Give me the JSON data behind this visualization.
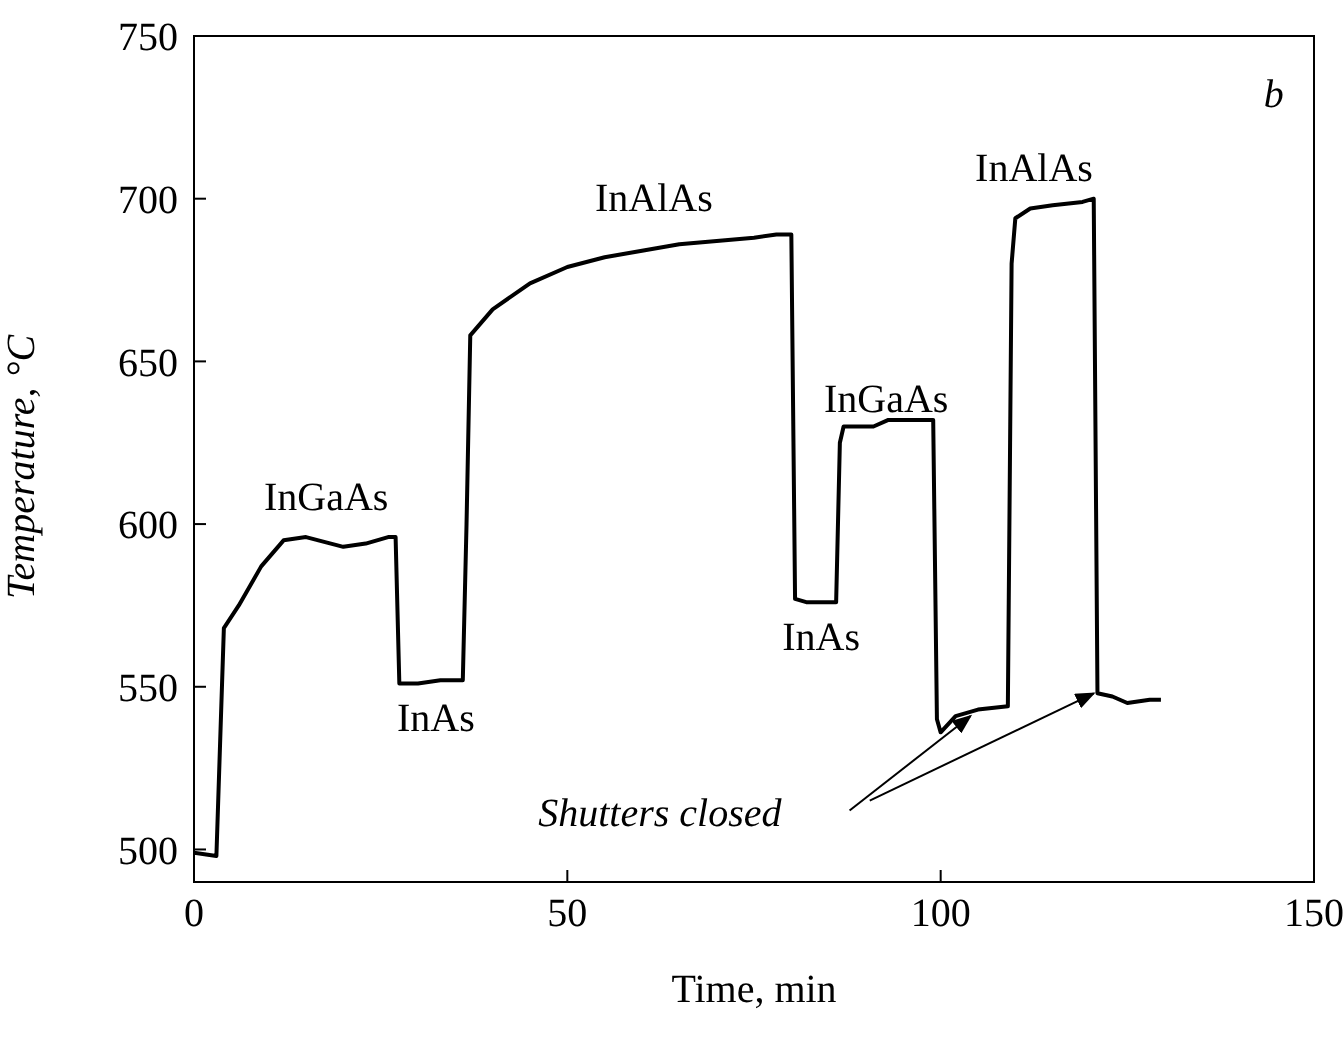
{
  "chart_data": {
    "type": "line",
    "xlabel": "Time, min",
    "ylabel": "Temperature, °C",
    "xlim": [
      0,
      150
    ],
    "xticks": [
      0,
      50,
      100,
      150
    ],
    "ylim": [
      490,
      750
    ],
    "yticks": [
      500,
      550,
      600,
      650,
      700,
      750
    ],
    "marker": "none",
    "line_style": "solid",
    "x": [
      0,
      3,
      4,
      6,
      9,
      12,
      15,
      20,
      23,
      26,
      27,
      27.5,
      30,
      33,
      36,
      36.5,
      37,
      40,
      45,
      50,
      55,
      60,
      65,
      70,
      75,
      78,
      80,
      80.5,
      82,
      86,
      86.5,
      87,
      91,
      93,
      99,
      99.5,
      100,
      102,
      105,
      109,
      109.5,
      110,
      112,
      115,
      119,
      120.5,
      121,
      123,
      125,
      128,
      129.5
    ],
    "series": [
      {
        "color": "#000000",
        "values": [
          499,
          498,
          568,
          575,
          587,
          595,
          596,
          593,
          594,
          596,
          596,
          551,
          551,
          552,
          552,
          600,
          658,
          666,
          674,
          679,
          682,
          684,
          686,
          687,
          688,
          689,
          689,
          577,
          576,
          576,
          625,
          630,
          630,
          632,
          632,
          540,
          536,
          541,
          543,
          544,
          680,
          694,
          697,
          698,
          699,
          700,
          548,
          547,
          545,
          546,
          546
        ]
      }
    ],
    "annotations": [
      "InGaAs",
      "InAs",
      "InAlAs",
      "InAs",
      "InGaAs",
      "InAlAs",
      "Shutters closed",
      "b"
    ]
  }
}
